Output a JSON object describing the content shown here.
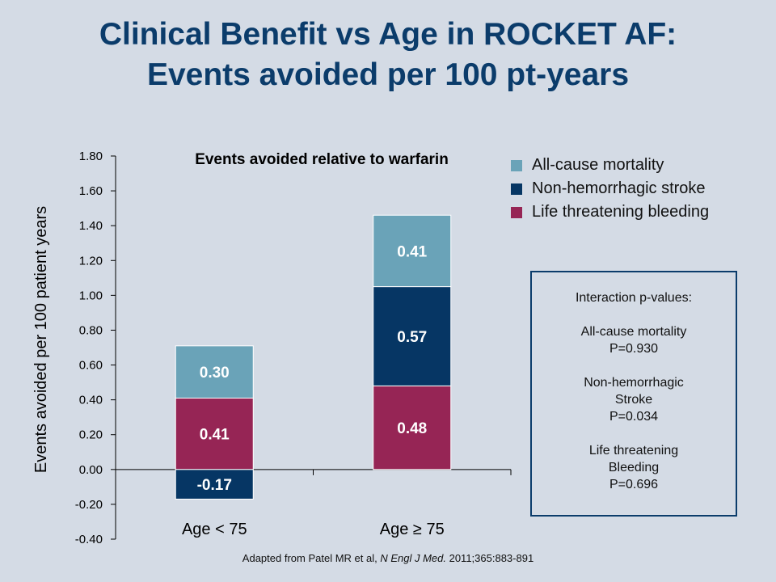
{
  "slide": {
    "title_line1": "Clinical Benefit vs Age in ROCKET AF:",
    "title_line2": "Events avoided per 100 pt-years",
    "footer": {
      "prefix": "Adapted from Patel MR et al, ",
      "journal": "N Engl J Med.",
      "suffix": " 2011;365:883-891"
    }
  },
  "colors": {
    "mortality": "#6aa3b8",
    "stroke": "#063664",
    "bleeding": "#962555"
  },
  "chart_data": {
    "type": "bar",
    "stacked": true,
    "title": "Events avoided relative to warfarin",
    "ylabel": "Events avoided per 100 patient years",
    "xlabel": "",
    "categories": [
      "Age < 75",
      "Age ≥ 75"
    ],
    "series": [
      {
        "name": "Life threatening bleeding",
        "values": [
          0.41,
          0.48
        ],
        "labels": [
          "0.41",
          "0.48"
        ]
      },
      {
        "name": "Non-hemorrhagic stroke",
        "values": [
          -0.17,
          0.57
        ],
        "labels": [
          "-0.17",
          "0.57"
        ]
      },
      {
        "name": "All-cause mortality",
        "values": [
          0.3,
          0.41
        ],
        "labels": [
          "0.30",
          "0.41"
        ]
      }
    ],
    "ylim": [
      -0.4,
      1.8
    ],
    "yticks": [
      "1.80",
      "1.60",
      "1.40",
      "1.20",
      "1.00",
      "0.80",
      "0.60",
      "0.40",
      "0.20",
      "0.00",
      "-0.20",
      "-0.40"
    ],
    "grid": false,
    "legend_position": "top-right"
  },
  "pvalues": {
    "heading": "Interaction p-values:",
    "groups": [
      {
        "lines": [
          "All-cause mortality",
          "P=0.930"
        ]
      },
      {
        "lines": [
          "Non-hemorrhagic",
          "Stroke",
          "P=0.034"
        ]
      },
      {
        "lines": [
          "Life threatening",
          "Bleeding",
          "P=0.696"
        ]
      }
    ]
  }
}
